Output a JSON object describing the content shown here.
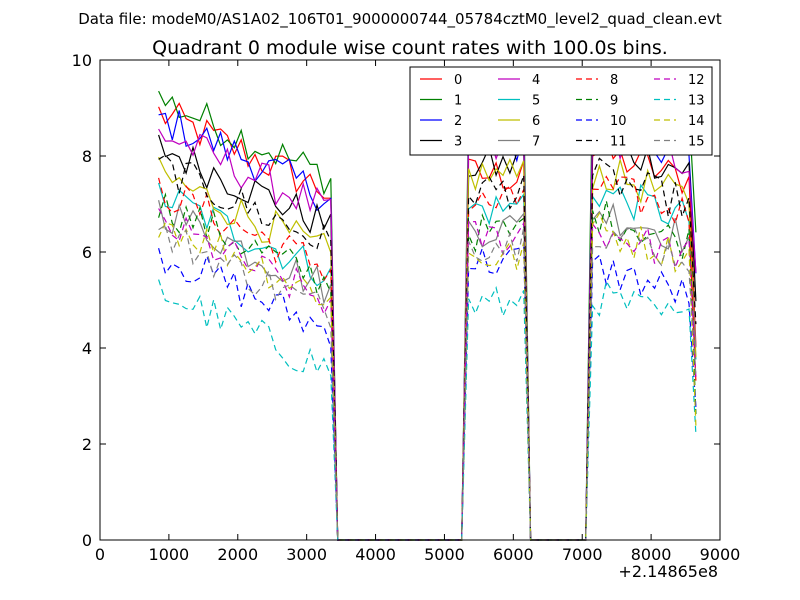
{
  "chart_data": {
    "type": "line",
    "suptitle": "Data file: modeM0/AS1A02_106T01_9000000744_05784cztM0_level2_quad_clean.evt",
    "title": "Quadrant 0 module wise count rates with 100.0s bins.",
    "xlabel": "",
    "ylabel": "",
    "x_offset_label": "+2.14865e8",
    "xlim": [
      0,
      9000
    ],
    "ylim": [
      0,
      10
    ],
    "xticks": [
      0,
      1000,
      2000,
      3000,
      4000,
      5000,
      6000,
      7000,
      8000,
      9000
    ],
    "xtick_labels": [
      "0",
      "1000",
      "2000",
      "3000",
      "4000",
      "5000",
      "6000",
      "7000",
      "8000",
      "9000"
    ],
    "yticks": [
      0,
      2,
      4,
      6,
      8,
      10
    ],
    "ytick_labels": [
      "0",
      "2",
      "4",
      "6",
      "8",
      "10"
    ],
    "segments": [
      {
        "x_start": 850,
        "x_end": 3250,
        "step": 100
      },
      {
        "x_start": 5350,
        "x_end": 6050,
        "step": 100
      },
      {
        "x_start": 7150,
        "x_end": 8550,
        "step": 100
      }
    ],
    "zero_ranges": [
      [
        3450,
        5250
      ],
      [
        6250,
        7050
      ]
    ],
    "drop_points": [
      3350,
      5250,
      6150,
      7050,
      8650
    ],
    "legend": {
      "location": "upper-right",
      "columns": 4
    },
    "series": [
      {
        "name": "0",
        "color": "#ff0000",
        "dash": "solid",
        "levels": [
          8.1,
          7.6,
          7.8
        ]
      },
      {
        "name": "1",
        "color": "#008000",
        "dash": "solid",
        "levels": [
          8.4,
          8.9,
          9.1
        ]
      },
      {
        "name": "2",
        "color": "#0000ff",
        "dash": "solid",
        "levels": [
          8.0,
          8.2,
          8.3
        ]
      },
      {
        "name": "3",
        "color": "#000000",
        "dash": "solid",
        "levels": [
          7.4,
          7.8,
          8.0
        ]
      },
      {
        "name": "4",
        "color": "#bf00bf",
        "dash": "solid",
        "levels": [
          7.7,
          8.1,
          8.2
        ]
      },
      {
        "name": "5",
        "color": "#00bfbf",
        "dash": "solid",
        "levels": [
          6.4,
          6.9,
          7.0
        ]
      },
      {
        "name": "6",
        "color": "#bfbf00",
        "dash": "solid",
        "levels": [
          6.8,
          7.6,
          7.4
        ]
      },
      {
        "name": "7",
        "color": "#808080",
        "dash": "solid",
        "levels": [
          6.1,
          6.5,
          6.6
        ]
      },
      {
        "name": "8",
        "color": "#ff0000",
        "dash": "dashed",
        "levels": [
          6.5,
          7.0,
          7.1
        ]
      },
      {
        "name": "9",
        "color": "#008000",
        "dash": "dashed",
        "levels": [
          6.2,
          6.4,
          6.5
        ]
      },
      {
        "name": "10",
        "color": "#0000ff",
        "dash": "dashed",
        "levels": [
          5.2,
          5.8,
          5.4
        ]
      },
      {
        "name": "11",
        "color": "#000000",
        "dash": "dashed",
        "levels": [
          7.0,
          7.3,
          7.3
        ]
      },
      {
        "name": "12",
        "color": "#bf00bf",
        "dash": "dashed",
        "levels": [
          5.8,
          6.3,
          6.2
        ]
      },
      {
        "name": "13",
        "color": "#00bfbf",
        "dash": "dashed",
        "levels": [
          4.4,
          4.9,
          4.8
        ]
      },
      {
        "name": "14",
        "color": "#bfbf00",
        "dash": "dashed",
        "levels": [
          5.9,
          5.9,
          6.2
        ]
      },
      {
        "name": "15",
        "color": "#808080",
        "dash": "dashed",
        "levels": [
          5.6,
          6.2,
          6.2
        ]
      }
    ]
  }
}
